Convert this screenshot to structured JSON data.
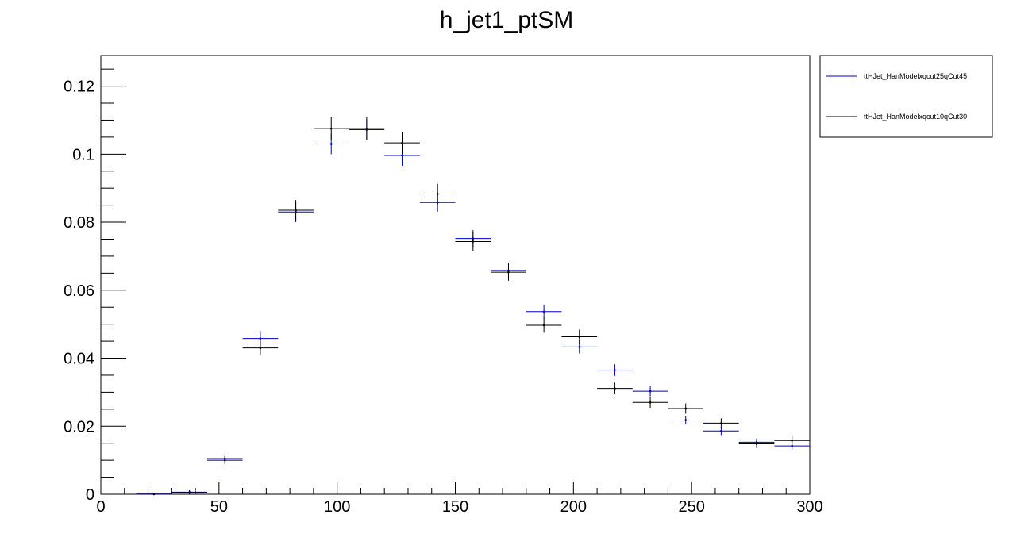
{
  "chart_data": {
    "type": "scatter",
    "title": "h_jet1_ptSM",
    "xlabel": "",
    "ylabel": "",
    "xlim": [
      0,
      300
    ],
    "ylim": [
      0,
      0.129
    ],
    "grid": false,
    "legend_position": "top-right",
    "x_ticks": [
      0,
      50,
      100,
      150,
      200,
      250,
      300
    ],
    "x_tick_labels": [
      "0",
      "50",
      "100",
      "150",
      "200",
      "250",
      "300"
    ],
    "y_ticks": [
      0,
      0.02,
      0.04,
      0.06,
      0.08,
      0.1,
      0.12
    ],
    "y_tick_labels": [
      "0",
      "0.02",
      "0.04",
      "0.06",
      "0.08",
      "0.1",
      "0.12"
    ],
    "bin_width": 15,
    "series": [
      {
        "name": "ttHJet_HanModelxqcut25qCut45",
        "color": "#0000cc",
        "x": [
          22.5,
          37.5,
          52.5,
          67.5,
          82.5,
          97.5,
          112.5,
          127.5,
          142.5,
          157.5,
          172.5,
          187.5,
          202.5,
          217.5,
          232.5,
          247.5,
          262.5,
          277.5,
          292.5
        ],
        "y": [
          0.0001,
          0.0006,
          0.0105,
          0.0458,
          0.083,
          0.103,
          0.1072,
          0.0996,
          0.0858,
          0.0752,
          0.0658,
          0.0537,
          0.0433,
          0.0365,
          0.0303,
          0.0218,
          0.0186,
          0.0153,
          0.0142
        ],
        "yerr": [
          0.0001,
          0.0006,
          0.0012,
          0.0022,
          0.003,
          0.003,
          0.003,
          0.003,
          0.0027,
          0.0025,
          0.0023,
          0.0021,
          0.0019,
          0.0017,
          0.0015,
          0.0013,
          0.0012,
          0.0011,
          0.0011
        ]
      },
      {
        "name": "ttHJet_HanModelxqcut10qCut30",
        "color": "#000000",
        "x": [
          22.5,
          37.5,
          52.5,
          67.5,
          82.5,
          97.5,
          112.5,
          127.5,
          142.5,
          157.5,
          172.5,
          187.5,
          202.5,
          217.5,
          232.5,
          247.5,
          262.5,
          277.5,
          292.5
        ],
        "y": [
          0.0,
          0.0005,
          0.01,
          0.043,
          0.0835,
          0.1075,
          0.1075,
          0.1033,
          0.0883,
          0.0743,
          0.0653,
          0.0497,
          0.0463,
          0.0311,
          0.027,
          0.0252,
          0.0209,
          0.0148,
          0.0158
        ],
        "yerr": [
          0.0,
          0.0005,
          0.0012,
          0.0022,
          0.003,
          0.0033,
          0.0033,
          0.0032,
          0.003,
          0.0027,
          0.0025,
          0.0022,
          0.0021,
          0.0017,
          0.0016,
          0.0015,
          0.0014,
          0.0012,
          0.0012
        ]
      }
    ]
  }
}
